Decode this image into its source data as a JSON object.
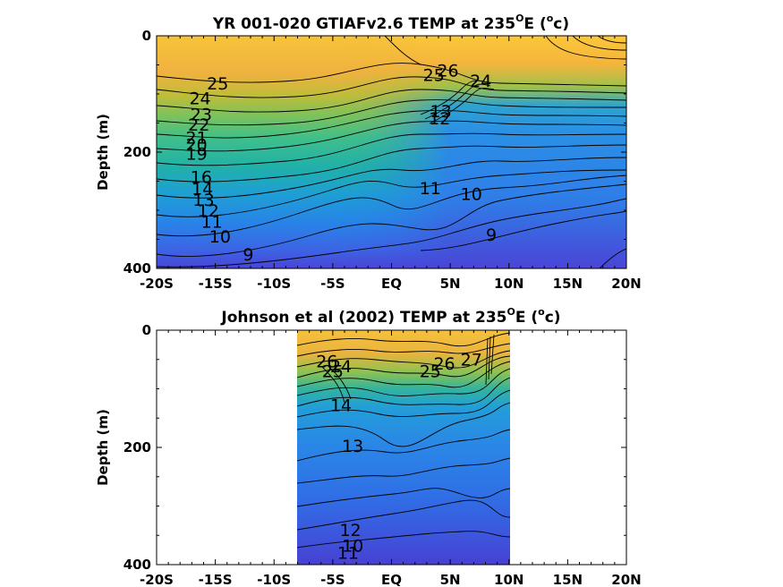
{
  "chart_data": [
    {
      "type": "contour",
      "title": "YR 001-020 GTIAFv2.6 TEMP at 235",
      "title_degree": "O",
      "title_suffix": "E (",
      "title_unit_sup": "o",
      "title_unit": "c)",
      "ylabel": "Depth (m)",
      "xlabel": "",
      "xlim": [
        -20,
        20
      ],
      "ylim": [
        0,
        400
      ],
      "y_reversed": true,
      "xticks": [
        -20,
        -15,
        -10,
        -5,
        0,
        5,
        10,
        15,
        20
      ],
      "xtick_labels": [
        "-20S",
        "-15S",
        "-10S",
        "-5S",
        "EQ",
        "5N",
        "10N",
        "15N",
        "20N"
      ],
      "yticks": [
        0,
        200,
        400
      ],
      "ytick_labels": [
        "0",
        "200",
        "400"
      ],
      "data_x_range": [
        -20,
        20
      ],
      "colormap": "parula",
      "color_range_degC": [
        8,
        29
      ],
      "contour_labels": [
        {
          "text": "25",
          "x": -14.8,
          "y": 92
        },
        {
          "text": "24",
          "x": -16.3,
          "y": 118
        },
        {
          "text": "23",
          "x": -16.2,
          "y": 145
        },
        {
          "text": "22",
          "x": -16.4,
          "y": 163
        },
        {
          "text": "21",
          "x": -16.6,
          "y": 185
        },
        {
          "text": "20",
          "x": -16.6,
          "y": 198
        },
        {
          "text": "19",
          "x": -16.6,
          "y": 213
        },
        {
          "text": "16",
          "x": -16.2,
          "y": 253
        },
        {
          "text": "14",
          "x": -16.1,
          "y": 273
        },
        {
          "text": "13",
          "x": -16.0,
          "y": 292
        },
        {
          "text": "12",
          "x": -15.6,
          "y": 311
        },
        {
          "text": "11",
          "x": -15.3,
          "y": 330
        },
        {
          "text": "10",
          "x": -14.6,
          "y": 355
        },
        {
          "text": "9",
          "x": -12.2,
          "y": 386
        },
        {
          "text": "26",
          "x": 4.8,
          "y": 70
        },
        {
          "text": "25",
          "x": 3.6,
          "y": 78
        },
        {
          "text": "24",
          "x": 7.6,
          "y": 88
        },
        {
          "text": "13",
          "x": 4.2,
          "y": 140
        },
        {
          "text": "12",
          "x": 4.1,
          "y": 152
        },
        {
          "text": "11",
          "x": 3.3,
          "y": 272
        },
        {
          "text": "10",
          "x": 6.8,
          "y": 282
        },
        {
          "text": "9",
          "x": 8.5,
          "y": 352
        }
      ]
    },
    {
      "type": "contour",
      "title": "Johnson et al (2002) TEMP at 235",
      "title_degree": "O",
      "title_suffix": "E (",
      "title_unit_sup": "o",
      "title_unit": "c)",
      "ylabel": "Depth (m)",
      "xlabel": "",
      "xlim": [
        -20,
        20
      ],
      "ylim": [
        0,
        400
      ],
      "y_reversed": true,
      "xticks": [
        -20,
        -15,
        -10,
        -5,
        0,
        5,
        10,
        15,
        20
      ],
      "xtick_labels": [
        "-20S",
        "-15S",
        "-10S",
        "-5S",
        "EQ",
        "5N",
        "10N",
        "15N",
        "20N"
      ],
      "yticks": [
        0,
        200,
        400
      ],
      "ytick_labels": [
        "0",
        "200",
        "400"
      ],
      "data_x_range": [
        -8,
        10
      ],
      "colormap": "parula",
      "color_range_degC": [
        8,
        29
      ],
      "contour_labels": [
        {
          "text": "26",
          "x": -5.5,
          "y": 63
        },
        {
          "text": "25",
          "x": -5.0,
          "y": 80
        },
        {
          "text": "24",
          "x": -4.3,
          "y": 72
        },
        {
          "text": "14",
          "x": -4.3,
          "y": 138
        },
        {
          "text": "13",
          "x": -3.3,
          "y": 208
        },
        {
          "text": "25",
          "x": 3.3,
          "y": 80
        },
        {
          "text": "26",
          "x": 4.5,
          "y": 67
        },
        {
          "text": "27",
          "x": 6.8,
          "y": 60
        },
        {
          "text": "12",
          "x": -3.5,
          "y": 351
        },
        {
          "text": "11",
          "x": -3.7,
          "y": 476
        },
        {
          "text": "10",
          "x": -3.3,
          "y": 378
        }
      ]
    }
  ]
}
